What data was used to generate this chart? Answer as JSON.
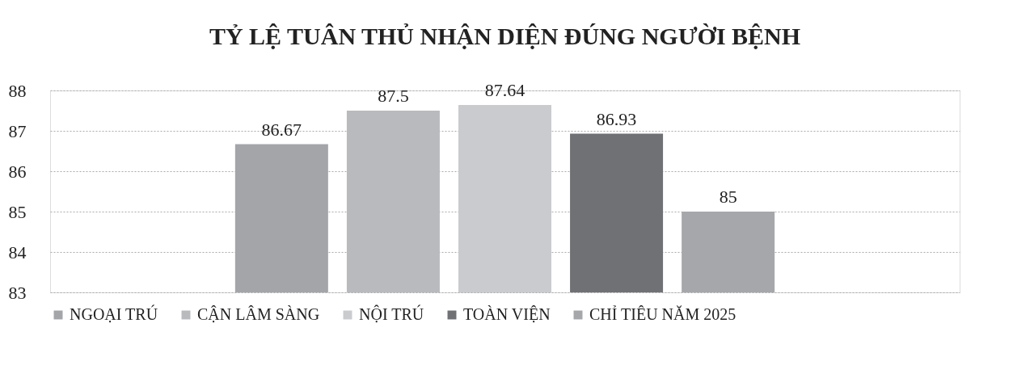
{
  "chart_data": {
    "type": "bar",
    "title": "TỶ LỆ TUÂN THỦ NHẬN DIỆN ĐÚNG NGƯỜI BỆNH",
    "categories": [
      null
    ],
    "series": [
      {
        "name": "NGOẠI TRÚ",
        "color": "#a3a5a9",
        "values": [
          86.67
        ]
      },
      {
        "name": "CẬN LÂM SÀNG",
        "color": "#b8babe",
        "values": [
          87.5
        ]
      },
      {
        "name": "NỘI TRÚ",
        "color": "#c9cbce",
        "values": [
          87.64
        ]
      },
      {
        "name": "TOÀN VIỆN",
        "color": "#6f7175",
        "values": [
          86.93
        ]
      },
      {
        "name": "CHỈ TIÊU NĂM 2025",
        "color": "#a5a7ab",
        "values": [
          85
        ]
      }
    ],
    "ylim": [
      83,
      88
    ],
    "yticks": [
      83,
      84,
      85,
      86,
      87,
      88
    ],
    "grid": "y",
    "legend": "bottom",
    "data_labels": true,
    "tick_labels": "y"
  }
}
